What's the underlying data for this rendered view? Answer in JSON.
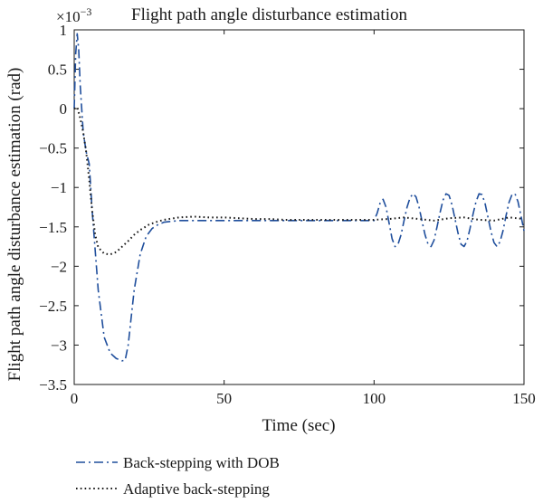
{
  "chart_data": {
    "type": "line",
    "title": "Flight path angle disturbance estimation",
    "xlabel": "Time (sec)",
    "ylabel": "Flight path angle disturbance estimation (rad)",
    "y_exponent_base": "×10",
    "y_exponent_power": "−3",
    "xlim": [
      0,
      150
    ],
    "ylim": [
      -3.5,
      1
    ],
    "xticks": [
      0,
      50,
      100,
      150
    ],
    "xtick_labels": [
      "0",
      "50",
      "100",
      "150"
    ],
    "yticks": [
      1,
      0.5,
      0,
      -0.5,
      -1,
      -1.5,
      -2,
      -2.5,
      -3,
      -3.5
    ],
    "ytick_labels": [
      "1",
      "0.5",
      "0",
      "−0.5",
      "−1",
      "−1.5",
      "−2",
      "−2.5",
      "−3",
      "−3.5"
    ],
    "grid": false,
    "legend_position": "below",
    "series": [
      {
        "name": "Back-stepping with DOB",
        "color": "#1f4e9c",
        "style": "dash-dot",
        "x": [
          0,
          0.5,
          1,
          1.5,
          2,
          3,
          4,
          5,
          6,
          8,
          10,
          12,
          14,
          16,
          17,
          18,
          20,
          22,
          24,
          26,
          28,
          30,
          35,
          40,
          45,
          50,
          55,
          60,
          65,
          70,
          75,
          80,
          85,
          90,
          95,
          99,
          100,
          101,
          102,
          103,
          104,
          105,
          106,
          107,
          108,
          109,
          110,
          111,
          112,
          113,
          114,
          115,
          116,
          117,
          118,
          119,
          120,
          121,
          122,
          123,
          124,
          125,
          126,
          127,
          128,
          129,
          130,
          131,
          132,
          133,
          134,
          135,
          136,
          137,
          138,
          139,
          140,
          141,
          142,
          143,
          144,
          145,
          146,
          147,
          148,
          149,
          150
        ],
        "y": [
          0,
          0.7,
          0.95,
          0.75,
          0.3,
          -0.3,
          -0.55,
          -0.7,
          -1.3,
          -2.3,
          -2.9,
          -3.1,
          -3.17,
          -3.2,
          -3.19,
          -3.0,
          -2.3,
          -1.85,
          -1.62,
          -1.52,
          -1.47,
          -1.44,
          -1.42,
          -1.42,
          -1.42,
          -1.42,
          -1.42,
          -1.42,
          -1.42,
          -1.42,
          -1.42,
          -1.42,
          -1.42,
          -1.42,
          -1.42,
          -1.42,
          -1.42,
          -1.33,
          -1.2,
          -1.15,
          -1.25,
          -1.45,
          -1.65,
          -1.75,
          -1.72,
          -1.6,
          -1.42,
          -1.25,
          -1.13,
          -1.08,
          -1.12,
          -1.25,
          -1.43,
          -1.6,
          -1.72,
          -1.75,
          -1.67,
          -1.5,
          -1.32,
          -1.16,
          -1.08,
          -1.1,
          -1.22,
          -1.4,
          -1.58,
          -1.72,
          -1.75,
          -1.68,
          -1.52,
          -1.34,
          -1.18,
          -1.08,
          -1.09,
          -1.2,
          -1.38,
          -1.56,
          -1.7,
          -1.75,
          -1.69,
          -1.55,
          -1.36,
          -1.19,
          -1.09,
          -1.08,
          -1.18,
          -1.36,
          -1.55
        ]
      },
      {
        "name": "Adaptive back-stepping",
        "color": "#1a1a1a",
        "style": "dotted",
        "x": [
          0,
          1,
          2,
          3,
          4,
          5,
          6,
          7,
          8,
          10,
          12,
          14,
          16,
          18,
          20,
          22,
          25,
          28,
          30,
          35,
          40,
          45,
          50,
          55,
          60,
          65,
          70,
          75,
          80,
          85,
          90,
          95,
          100,
          105,
          110,
          115,
          120,
          125,
          130,
          135,
          140,
          145,
          150
        ],
        "y": [
          0,
          0.02,
          -0.12,
          -0.3,
          -0.55,
          -0.9,
          -1.3,
          -1.6,
          -1.76,
          -1.84,
          -1.85,
          -1.82,
          -1.75,
          -1.68,
          -1.6,
          -1.54,
          -1.47,
          -1.43,
          -1.41,
          -1.38,
          -1.37,
          -1.38,
          -1.38,
          -1.39,
          -1.4,
          -1.4,
          -1.41,
          -1.41,
          -1.41,
          -1.41,
          -1.41,
          -1.41,
          -1.41,
          -1.4,
          -1.38,
          -1.4,
          -1.42,
          -1.39,
          -1.38,
          -1.41,
          -1.42,
          -1.38,
          -1.4
        ]
      }
    ]
  }
}
